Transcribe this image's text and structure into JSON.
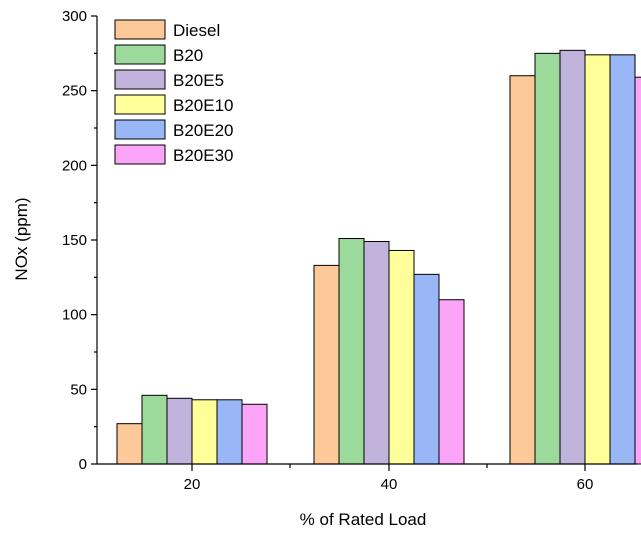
{
  "chart_data": {
    "type": "bar",
    "title": "",
    "xlabel": "% of Rated Load",
    "ylabel": "NOx (ppm)",
    "categories": [
      "20",
      "40",
      "60"
    ],
    "ylim": [
      0,
      300
    ],
    "yticks": [
      0,
      50,
      100,
      150,
      200,
      250,
      300
    ],
    "grid": false,
    "legend_position": "top-left",
    "series": [
      {
        "name": "Diesel",
        "color": "#FDC998",
        "values": [
          27,
          133,
          260
        ]
      },
      {
        "name": "B20",
        "color": "#9BDA9B",
        "values": [
          46,
          151,
          275
        ]
      },
      {
        "name": "B20E5",
        "color": "#C2B3DC",
        "values": [
          44,
          149,
          277
        ]
      },
      {
        "name": "B20E10",
        "color": "#FFFF99",
        "values": [
          43,
          143,
          274
        ]
      },
      {
        "name": "B20E20",
        "color": "#99B7F7",
        "values": [
          43,
          127,
          274
        ]
      },
      {
        "name": "B20E30",
        "color": "#FBA4F8",
        "values": [
          40,
          110,
          259
        ]
      }
    ]
  }
}
